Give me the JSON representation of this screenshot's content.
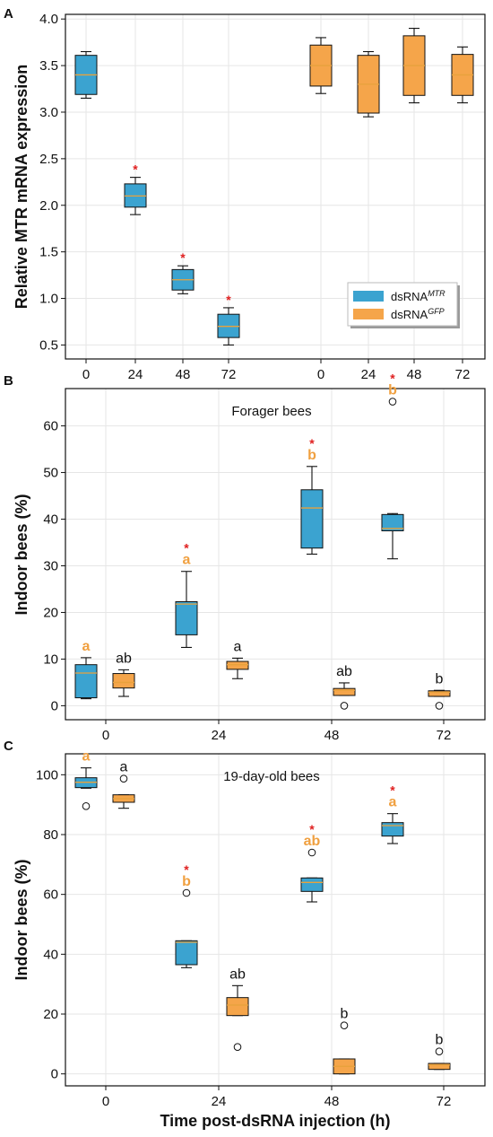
{
  "colors": {
    "dsrna_mtr": "#3ba3d0",
    "dsrna_gfp": "#f5a54a",
    "median": "#e8a23c",
    "significance_star": "#e02020",
    "letter_orange": "#f0a040",
    "letter_black": "#111111",
    "grid": "#e6e6e6"
  },
  "chart_data": [
    {
      "panel": "A",
      "type": "box",
      "title": "",
      "ylabel": "Relative MTR mRNA expression",
      "xlabel": "",
      "ylim": [
        0.35,
        4.05
      ],
      "yticks": [
        "0.5",
        "1.0",
        "1.5",
        "2.0",
        "2.5",
        "3.0",
        "3.5",
        "4.0"
      ],
      "categories": [
        "0",
        "24",
        "48",
        "72",
        "0",
        "24",
        "48",
        "72"
      ],
      "legend": {
        "position": "lower-right",
        "entries": [
          {
            "label": "dsRNA",
            "superscript": "MTR",
            "color": "#3ba3d0"
          },
          {
            "label": "dsRNA",
            "superscript": "GFP",
            "color": "#f5a54a"
          }
        ]
      },
      "boxes": [
        {
          "x": "0",
          "group": "dsRNA MTR",
          "whisker_low": 3.15,
          "q1": 3.19,
          "median": 3.4,
          "q3": 3.61,
          "whisker_high": 3.65,
          "outliers": [],
          "star": "",
          "letter": ""
        },
        {
          "x": "24",
          "group": "dsRNA MTR",
          "whisker_low": 1.9,
          "q1": 1.98,
          "median": 2.1,
          "q3": 2.23,
          "whisker_high": 2.3,
          "outliers": [],
          "star": "*",
          "letter": ""
        },
        {
          "x": "48",
          "group": "dsRNA MTR",
          "whisker_low": 1.05,
          "q1": 1.09,
          "median": 1.2,
          "q3": 1.31,
          "whisker_high": 1.35,
          "outliers": [],
          "star": "*",
          "letter": ""
        },
        {
          "x": "72",
          "group": "dsRNA MTR",
          "whisker_low": 0.5,
          "q1": 0.58,
          "median": 0.7,
          "q3": 0.83,
          "whisker_high": 0.9,
          "outliers": [],
          "star": "*",
          "letter": ""
        },
        {
          "x": "0",
          "group": "dsRNA GFP",
          "whisker_low": 3.2,
          "q1": 3.28,
          "median": 3.5,
          "q3": 3.72,
          "whisker_high": 3.8,
          "outliers": [],
          "star": "",
          "letter": ""
        },
        {
          "x": "24",
          "group": "dsRNA GFP",
          "whisker_low": 2.95,
          "q1": 2.99,
          "median": 3.3,
          "q3": 3.61,
          "whisker_high": 3.65,
          "outliers": [],
          "star": "",
          "letter": ""
        },
        {
          "x": "48",
          "group": "dsRNA GFP",
          "whisker_low": 3.1,
          "q1": 3.18,
          "median": 3.5,
          "q3": 3.82,
          "whisker_high": 3.9,
          "outliers": [],
          "star": "",
          "letter": ""
        },
        {
          "x": "72",
          "group": "dsRNA GFP",
          "whisker_low": 3.1,
          "q1": 3.18,
          "median": 3.4,
          "q3": 3.62,
          "whisker_high": 3.7,
          "outliers": [],
          "star": "",
          "letter": ""
        }
      ]
    },
    {
      "panel": "B",
      "type": "box",
      "title": "Forager bees",
      "ylabel": "Indoor bees (%)",
      "xlabel": "",
      "ylim": [
        -3,
        68
      ],
      "yticks": [
        "0",
        "10",
        "20",
        "30",
        "40",
        "50",
        "60"
      ],
      "categories": [
        "0",
        "24",
        "48",
        "72"
      ],
      "boxes": [
        {
          "x": "0",
          "group": "dsRNA MTR",
          "whisker_low": 1.5,
          "q1": 1.7,
          "median": 7.0,
          "q3": 8.8,
          "whisker_high": 10.3,
          "outliers": [],
          "star": "",
          "letter": "a"
        },
        {
          "x": "0",
          "group": "dsRNA GFP",
          "whisker_low": 2.0,
          "q1": 3.8,
          "median": 5.0,
          "q3": 6.9,
          "whisker_high": 7.7,
          "outliers": [],
          "star": "",
          "letter": "ab"
        },
        {
          "x": "24",
          "group": "dsRNA MTR",
          "whisker_low": 12.5,
          "q1": 15.2,
          "median": 21.8,
          "q3": 22.3,
          "whisker_high": 28.8,
          "outliers": [],
          "star": "*",
          "letter": "a"
        },
        {
          "x": "24",
          "group": "dsRNA GFP",
          "whisker_low": 5.8,
          "q1": 7.8,
          "median": 8.8,
          "q3": 9.5,
          "whisker_high": 10.2,
          "outliers": [],
          "star": "",
          "letter": "a"
        },
        {
          "x": "48",
          "group": "dsRNA MTR",
          "whisker_low": 32.5,
          "q1": 33.8,
          "median": 42.4,
          "q3": 46.3,
          "whisker_high": 51.3,
          "outliers": [],
          "star": "*",
          "letter": "b"
        },
        {
          "x": "48",
          "group": "dsRNA GFP",
          "whisker_low": 2.2,
          "q1": 2.2,
          "median": 3.3,
          "q3": 3.7,
          "whisker_high": 4.9,
          "outliers": [
            0.0
          ],
          "star": "",
          "letter": "ab"
        },
        {
          "x": "72",
          "group": "dsRNA MTR",
          "whisker_low": 31.5,
          "q1": 37.5,
          "median": 38.0,
          "q3": 41.0,
          "whisker_high": 41.2,
          "outliers": [
            65.2
          ],
          "star": "*",
          "letter": "b"
        },
        {
          "x": "72",
          "group": "dsRNA GFP",
          "whisker_low": 2.0,
          "q1": 2.0,
          "median": 2.9,
          "q3": 3.2,
          "whisker_high": 3.3,
          "outliers": [
            0.0
          ],
          "star": "",
          "letter": "b"
        }
      ]
    },
    {
      "panel": "C",
      "type": "box",
      "title": "19-day-old bees",
      "ylabel": "Indoor bees (%)",
      "xlabel": "Time post-dsRNA injection (h)",
      "ylim": [
        -4,
        107
      ],
      "yticks": [
        "0",
        "20",
        "40",
        "60",
        "80",
        "100"
      ],
      "categories": [
        "0",
        "24",
        "48",
        "72"
      ],
      "boxes": [
        {
          "x": "0",
          "group": "dsRNA MTR",
          "whisker_low": 95.5,
          "q1": 95.7,
          "median": 97.5,
          "q3": 99.0,
          "whisker_high": 102.3,
          "outliers": [
            89.5
          ],
          "star": "",
          "letter": "a"
        },
        {
          "x": "0",
          "group": "dsRNA GFP",
          "whisker_low": 88.8,
          "q1": 90.8,
          "median": 92.0,
          "q3": 93.3,
          "whisker_high": 93.3,
          "outliers": [
            98.7
          ],
          "star": "",
          "letter": "a"
        },
        {
          "x": "24",
          "group": "dsRNA MTR",
          "whisker_low": 35.5,
          "q1": 36.5,
          "median": 44.0,
          "q3": 44.5,
          "whisker_high": 44.5,
          "outliers": [
            60.5
          ],
          "star": "*",
          "letter": "b"
        },
        {
          "x": "24",
          "group": "dsRNA GFP",
          "whisker_low": 19.5,
          "q1": 19.5,
          "median": 23.0,
          "q3": 25.5,
          "whisker_high": 29.5,
          "outliers": [
            9.0
          ],
          "star": "",
          "letter": "ab"
        },
        {
          "x": "48",
          "group": "dsRNA MTR",
          "whisker_low": 57.5,
          "q1": 61.0,
          "median": 64.0,
          "q3": 65.5,
          "whisker_high": 65.5,
          "outliers": [
            74.0
          ],
          "star": "*",
          "letter": "ab"
        },
        {
          "x": "48",
          "group": "dsRNA GFP",
          "whisker_low": 0.0,
          "q1": 0.0,
          "median": 2.5,
          "q3": 5.0,
          "whisker_high": 5.0,
          "outliers": [
            16.2
          ],
          "star": "",
          "letter": "b"
        },
        {
          "x": "72",
          "group": "dsRNA MTR",
          "whisker_low": 77.0,
          "q1": 79.5,
          "median": 83.0,
          "q3": 84.0,
          "whisker_high": 87.0,
          "outliers": [],
          "star": "*",
          "letter": "a"
        },
        {
          "x": "72",
          "group": "dsRNA GFP",
          "whisker_low": 1.5,
          "q1": 1.5,
          "median": 3.0,
          "q3": 3.5,
          "whisker_high": 3.5,
          "outliers": [
            7.5
          ],
          "star": "",
          "letter": "b"
        }
      ]
    }
  ]
}
